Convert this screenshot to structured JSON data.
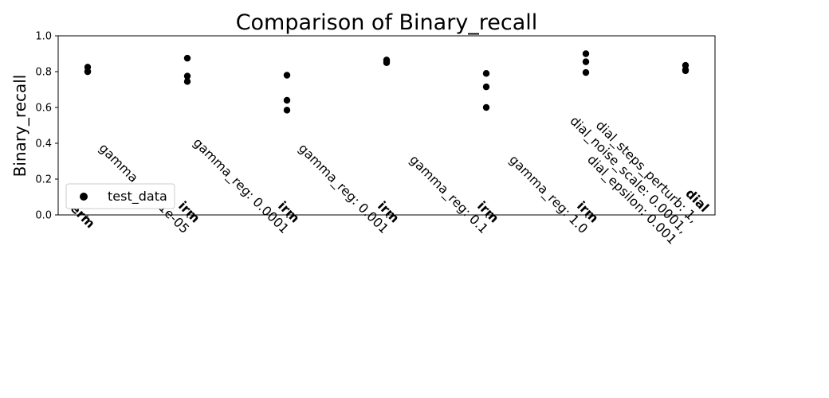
{
  "chart_data": {
    "type": "scatter",
    "title": "Comparison of Binary_recall",
    "xlabel": "",
    "ylabel": "Binary_recall",
    "ylim": [
      0.0,
      1.0
    ],
    "yticks": [
      "0.0",
      "0.2",
      "0.4",
      "0.6",
      "0.8",
      "1.0"
    ],
    "grid": false,
    "legend_position": "lower-left",
    "categories": [
      {
        "method": "erm",
        "params": []
      },
      {
        "method": "irm",
        "params": [
          "gamma_reg: 1e-05"
        ]
      },
      {
        "method": "irm",
        "params": [
          "gamma_reg: 0.0001"
        ]
      },
      {
        "method": "irm",
        "params": [
          "gamma_reg: 0.001"
        ]
      },
      {
        "method": "irm",
        "params": [
          "gamma_reg: 0.1"
        ]
      },
      {
        "method": "irm",
        "params": [
          "gamma_reg: 1.0"
        ]
      },
      {
        "method": "dial",
        "params": [
          "dial_steps_perturb: 1,",
          "dial_noise_scale: 0.0001,",
          "dial_epsilon: 0.001"
        ]
      }
    ],
    "series": [
      {
        "name": "test_data",
        "color": "#000000",
        "values": [
          [
            0.825,
            0.8,
            0.8
          ],
          [
            0.875,
            0.775,
            0.745
          ],
          [
            0.78,
            0.64,
            0.585
          ],
          [
            0.865,
            0.85,
            0.86
          ],
          [
            0.79,
            0.715,
            0.6
          ],
          [
            0.9,
            0.855,
            0.795
          ],
          [
            0.835,
            0.81,
            0.805
          ]
        ]
      }
    ]
  }
}
